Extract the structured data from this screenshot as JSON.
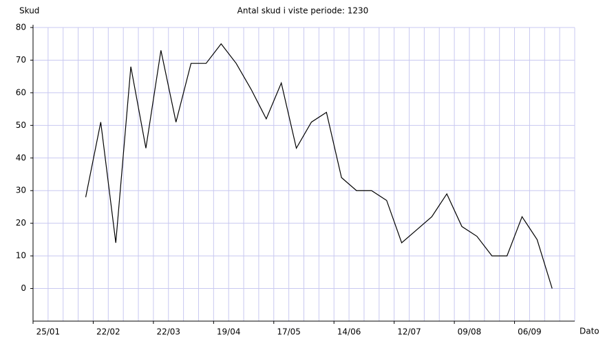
{
  "chart_data": {
    "type": "line",
    "title": "Antal skud i viste periode: 1230",
    "y_label": "Skud",
    "x_label": "Dato",
    "categories": [
      null,
      "25/01",
      null,
      null,
      null,
      "22/02",
      null,
      null,
      null,
      "22/03",
      null,
      null,
      null,
      "19/04",
      null,
      null,
      null,
      "17/05",
      null,
      null,
      null,
      "14/06",
      null,
      null,
      null,
      "12/07",
      null,
      null,
      null,
      "09/08",
      null,
      null,
      null,
      "06/09",
      null,
      null
    ],
    "series": [
      {
        "name": "Skud",
        "color": "#000000",
        "values": [
          null,
          null,
          null,
          28,
          51,
          14,
          68,
          43,
          73,
          51,
          69,
          69,
          75,
          69,
          61,
          52,
          63,
          43,
          51,
          54,
          34,
          30,
          30,
          27,
          14,
          18,
          22,
          29,
          19,
          16,
          10,
          10,
          22,
          15,
          0,
          null
        ]
      }
    ],
    "ylim": [
      -10,
      80
    ],
    "yticks": [
      0,
      10,
      20,
      30,
      40,
      50,
      60,
      70,
      80
    ],
    "grid": true,
    "grid_color": "#c8c8f0"
  }
}
